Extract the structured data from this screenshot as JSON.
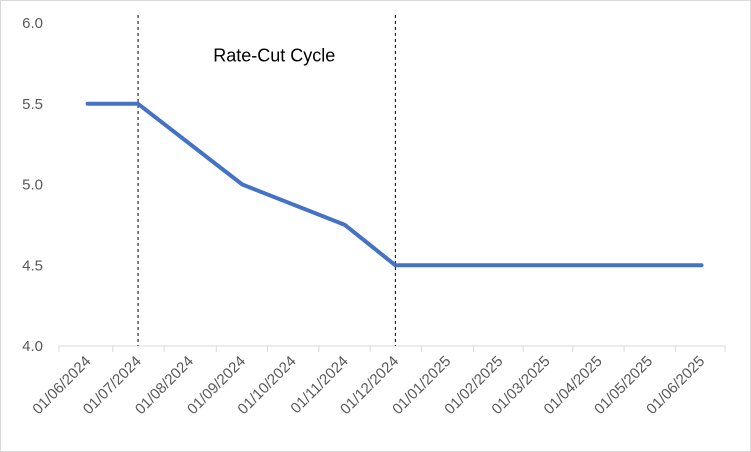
{
  "chart_data": {
    "type": "line",
    "title": "",
    "xlabel": "",
    "ylabel": "",
    "x_tick_labels": [
      "01/06/2024",
      "01/07/2024",
      "01/08/2024",
      "01/09/2024",
      "01/10/2024",
      "01/11/2024",
      "01/12/2024",
      "01/01/2025",
      "01/02/2025",
      "01/03/2025",
      "01/04/2025",
      "01/05/2025",
      "01/06/2025"
    ],
    "y_tick_labels": [
      "4.0",
      "4.5",
      "5.0",
      "5.5",
      "6.0"
    ],
    "ylim": [
      4.0,
      6.0
    ],
    "xlim": [
      "2024-05-15",
      "2025-06-15"
    ],
    "grid": false,
    "legend": "none",
    "series": [
      {
        "color": "#4472C4",
        "points": [
          {
            "x": "2024-06-01",
            "y": 5.5
          },
          {
            "x": "2024-07-01",
            "y": 5.5
          },
          {
            "x": "2024-09-01",
            "y": 5.0
          },
          {
            "x": "2024-11-01",
            "y": 4.75
          },
          {
            "x": "2024-12-01",
            "y": 4.5
          },
          {
            "x": "2025-06-01",
            "y": 4.5
          }
        ]
      }
    ],
    "vertical_markers": [
      {
        "x": "2024-07-01",
        "style": "dashed",
        "color": "#000000"
      },
      {
        "x": "2024-12-01",
        "style": "dashed",
        "color": "#000000"
      }
    ],
    "annotations": [
      {
        "text": "Rate-Cut Cycle",
        "x": "2024-09-20",
        "y": 5.8
      }
    ],
    "axis_color": "#d9d9d9",
    "tick_label_color": "#595959"
  }
}
